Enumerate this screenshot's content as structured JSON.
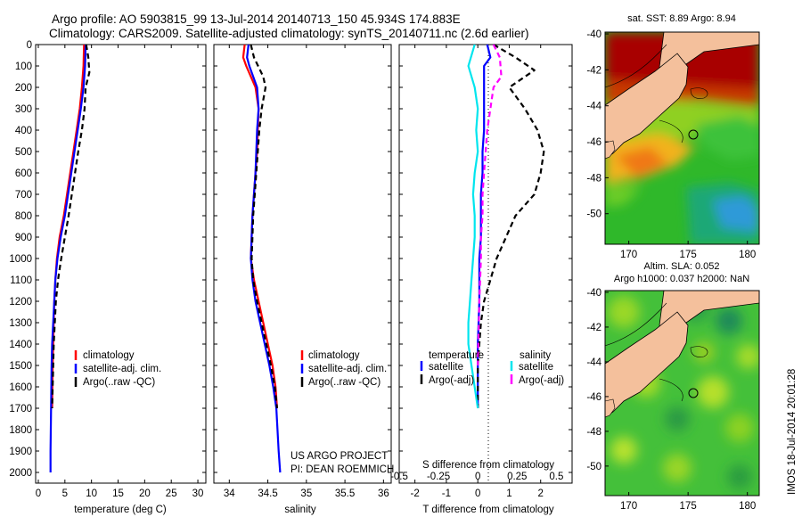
{
  "header": {
    "line1": "Argo profile: AO 5903815_99 13-Jul-2014 20140713_150 45.934S 174.883E",
    "line2": "Climatology: CARS2009. Satellite-adjusted climatology: synTS_20140711.nc (2.6d earlier)"
  },
  "credits": {
    "line1": "US ARGO PROJECT",
    "line2": "PI: DEAN ROEMMICH"
  },
  "stamp": "IMOS 18-Jul-2014 20:01:28",
  "colors": {
    "climatology": "#ff0000",
    "satellite": "#0000ff",
    "argo": "#000000",
    "s_satellite": "#00e5ee",
    "s_argo": "#ff00ff"
  },
  "chart_data": [
    {
      "type": "line",
      "panel": "temperature",
      "xlabel": "temperature (deg C)",
      "ylabel": "",
      "xlim": [
        -0.5,
        31.5
      ],
      "ylim": [
        2050,
        0
      ],
      "xticks": [
        0,
        5,
        10,
        15,
        20,
        25,
        30
      ],
      "xtick_labels": [
        "0",
        "5",
        "10",
        "15",
        "20",
        "25",
        "30"
      ],
      "yticks": [
        0,
        100,
        200,
        300,
        400,
        500,
        600,
        700,
        800,
        900,
        1000,
        1100,
        1200,
        1300,
        1400,
        1500,
        1600,
        1700,
        1800,
        1900,
        2000
      ],
      "ytick_labels": [
        "0",
        "100",
        "200",
        "300",
        "400",
        "500",
        "600",
        "700",
        "800",
        "900",
        "1000",
        "1100",
        "1200",
        "1300",
        "1400",
        "1500",
        "1600",
        "1700",
        "1800",
        "1900",
        "2000"
      ],
      "legend": [
        "climatology",
        "satellite-adj. clim.",
        "Argo(..raw -QC)"
      ],
      "series": [
        {
          "name": "climatology",
          "style": "solid",
          "x": [
            8.6,
            8.5,
            8.2,
            7.8,
            7.2,
            6.6,
            6.0,
            5.4,
            4.8,
            4.0,
            3.5,
            3.2,
            3.0,
            2.9,
            2.8,
            2.7,
            2.6
          ],
          "y": [
            0,
            100,
            200,
            300,
            400,
            500,
            600,
            700,
            800,
            900,
            1000,
            1100,
            1200,
            1300,
            1400,
            1500,
            1700
          ]
        },
        {
          "name": "satellite-adj. clim.",
          "style": "solid",
          "x": [
            8.9,
            8.8,
            8.5,
            8.0,
            7.4,
            6.8,
            6.2,
            5.6,
            5.0,
            4.2,
            3.6,
            3.2,
            3.0,
            2.8,
            2.6,
            2.5,
            2.4,
            2.3,
            2.3
          ],
          "y": [
            0,
            100,
            200,
            300,
            400,
            500,
            600,
            700,
            800,
            900,
            1000,
            1100,
            1200,
            1300,
            1400,
            1500,
            1700,
            1900,
            2000
          ]
        },
        {
          "name": "Argo(..raw -QC)",
          "style": "dashed",
          "x": [
            9.0,
            9.4,
            9.6,
            8.9,
            8.7,
            8.2,
            7.5,
            6.9,
            6.3,
            5.7,
            5.0,
            4.3,
            3.7,
            3.3,
            3.1,
            2.9,
            2.8,
            2.7,
            2.6
          ],
          "y": [
            0,
            60,
            130,
            200,
            300,
            400,
            500,
            600,
            700,
            800,
            900,
            1000,
            1100,
            1200,
            1300,
            1400,
            1500,
            1600,
            1700
          ]
        }
      ]
    },
    {
      "type": "line",
      "panel": "salinity",
      "xlabel": "salinity",
      "ylabel": "",
      "xlim": [
        33.8,
        36.1
      ],
      "ylim": [
        2050,
        0
      ],
      "xticks": [
        34,
        34.5,
        35,
        35.5,
        36
      ],
      "xtick_labels": [
        "34",
        "34.5",
        "35",
        "35.5",
        "36"
      ],
      "legend": [
        "climatology",
        "satellite-adj. clim.",
        "Argo(..raw -QC)"
      ],
      "series": [
        {
          "name": "climatology",
          "style": "solid",
          "x": [
            34.2,
            34.18,
            34.22,
            34.34,
            34.38,
            34.37,
            34.36,
            34.34,
            34.32,
            34.3,
            34.29,
            34.28,
            34.32,
            34.38,
            34.44,
            34.5,
            34.56,
            34.6,
            34.62
          ],
          "y": [
            0,
            60,
            100,
            200,
            300,
            400,
            500,
            600,
            700,
            800,
            900,
            1000,
            1100,
            1200,
            1300,
            1400,
            1500,
            1600,
            1700
          ]
        },
        {
          "name": "satellite-adj. clim.",
          "style": "solid",
          "x": [
            34.25,
            34.23,
            34.26,
            34.36,
            34.38,
            34.36,
            34.35,
            34.34,
            34.32,
            34.3,
            34.29,
            34.28,
            34.3,
            34.34,
            34.4,
            34.46,
            34.52,
            34.57,
            34.61,
            34.64,
            34.66
          ],
          "y": [
            0,
            60,
            100,
            200,
            300,
            400,
            500,
            600,
            700,
            800,
            900,
            1000,
            1100,
            1200,
            1300,
            1400,
            1500,
            1600,
            1700,
            1900,
            2000
          ]
        },
        {
          "name": "Argo(..raw -QC)",
          "style": "dashed",
          "x": [
            34.28,
            34.32,
            34.44,
            34.47,
            34.42,
            34.39,
            34.37,
            34.35,
            34.33,
            34.31,
            34.3,
            34.29,
            34.31,
            34.36,
            34.42,
            34.48,
            34.54,
            34.59,
            34.62
          ],
          "y": [
            0,
            60,
            150,
            200,
            300,
            400,
            500,
            600,
            700,
            800,
            900,
            1000,
            1100,
            1200,
            1300,
            1400,
            1500,
            1600,
            1700
          ]
        }
      ]
    },
    {
      "type": "line",
      "panel": "difference",
      "xlabel": "T difference from climatology",
      "top_axis_label": "S difference from climatology",
      "xlim": [
        -2.5,
        3.0
      ],
      "ylim": [
        2050,
        0
      ],
      "xticks": [
        -2,
        -1,
        0,
        1,
        2
      ],
      "xtick_labels": [
        "-2",
        "-1",
        "0",
        "1",
        "2"
      ],
      "sxticks": [
        -0.5,
        -0.25,
        0,
        0.25,
        0.5
      ],
      "sxtick_labels": [
        "-0.5",
        "-0.25",
        "0",
        "0.25",
        "0.5"
      ],
      "legend_groups": [
        {
          "title": "temperature",
          "items": [
            "satellite",
            "Argo(-adj)"
          ]
        },
        {
          "title": "salinity",
          "items": [
            "satellite",
            "Argo(-adj)"
          ]
        }
      ],
      "series": [
        {
          "name": "temperature satellite",
          "style": "solid",
          "x": [
            0.3,
            0.4,
            0.2,
            0.2,
            0.2,
            0.2,
            0.15,
            0.15,
            0.1,
            0.1,
            0.1,
            0.05,
            0.05,
            0.0,
            0.0,
            0.0,
            0.0
          ],
          "y": [
            0,
            60,
            100,
            200,
            300,
            400,
            500,
            600,
            700,
            800,
            900,
            1000,
            1200,
            1400,
            1500,
            1600,
            1700
          ]
        },
        {
          "name": "temperature Argo(-adj)",
          "style": "dashed",
          "x": [
            0.5,
            1.2,
            1.8,
            1.0,
            1.5,
            1.9,
            2.1,
            2.0,
            1.8,
            1.2,
            0.9,
            0.6,
            0.4,
            0.2,
            0.1,
            0.05,
            0.0,
            0.0,
            0.0
          ],
          "y": [
            0,
            60,
            120,
            200,
            300,
            400,
            500,
            600,
            700,
            800,
            900,
            1000,
            1100,
            1200,
            1300,
            1400,
            1500,
            1600,
            1700
          ]
        },
        {
          "name": "salinity satellite",
          "style": "solid",
          "x": [
            -0.02,
            -0.06,
            -0.02,
            0.0,
            -0.01,
            0.0,
            -0.02,
            -0.03,
            -0.02,
            -0.02,
            -0.03,
            -0.04,
            -0.05,
            -0.06,
            -0.06,
            -0.04,
            0.0
          ],
          "y": [
            0,
            100,
            200,
            300,
            400,
            500,
            600,
            700,
            800,
            900,
            1000,
            1100,
            1200,
            1300,
            1400,
            1500,
            1700
          ]
        },
        {
          "name": "salinity Argo(-adj)",
          "style": "dashed",
          "x": [
            0.1,
            0.14,
            0.15,
            0.1,
            0.08,
            0.06,
            0.05,
            0.04,
            0.03,
            0.03,
            0.02,
            0.02,
            0.01,
            0.0
          ],
          "y": [
            0,
            60,
            150,
            200,
            300,
            400,
            500,
            600,
            700,
            800,
            900,
            1000,
            1200,
            1500
          ]
        }
      ]
    },
    {
      "type": "heatmap",
      "panel": "sst-map",
      "title": "sat. SST: 8.89 Argo: 8.94",
      "xlim": [
        168,
        181
      ],
      "ylim": [
        -51.7,
        -39.9
      ],
      "xticks": [
        170,
        175,
        180
      ],
      "xtick_labels": [
        "170",
        "175",
        "180"
      ],
      "yticks": [
        -40,
        -42,
        -44,
        -46,
        -48,
        -50
      ],
      "ytick_labels": [
        "-40",
        "-42",
        "-44",
        "-46",
        "-48",
        "-50"
      ],
      "argo_position": [
        174.883,
        -45.934
      ]
    },
    {
      "type": "heatmap",
      "panel": "sla-map",
      "title": "Altim. SLA: 0.052",
      "subtitle": "Argo h1000: 0.037 h2000: NaN",
      "xlim": [
        168,
        181
      ],
      "ylim": [
        -51.7,
        -39.9
      ],
      "xticks": [
        170,
        175,
        180
      ],
      "xtick_labels": [
        "170",
        "175",
        "180"
      ],
      "yticks": [
        -40,
        -42,
        -44,
        -46,
        -48,
        -50
      ],
      "ytick_labels": [
        "-40",
        "-42",
        "-44",
        "-46",
        "-48",
        "-50"
      ],
      "argo_position": [
        174.883,
        -45.934
      ]
    }
  ]
}
